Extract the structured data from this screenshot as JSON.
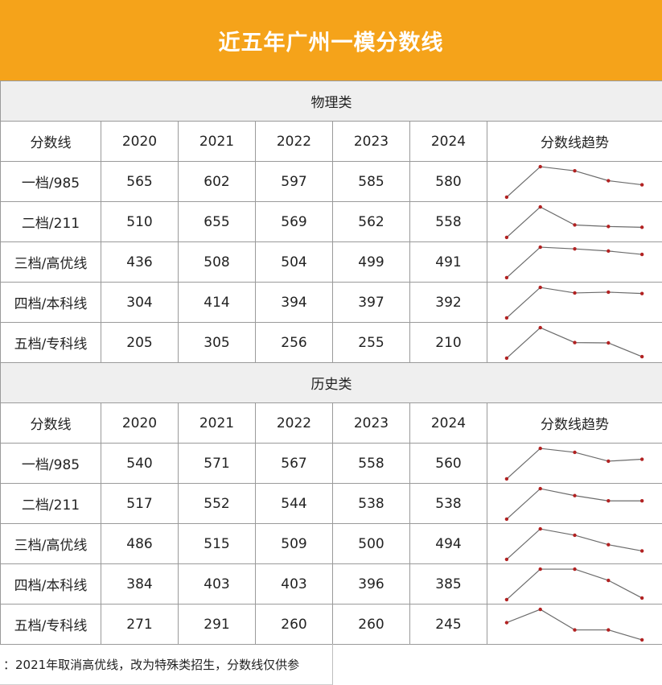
{
  "header": {
    "title": "近五年广州一模分数线"
  },
  "columns": {
    "label": "分数线",
    "years": [
      "2020",
      "2021",
      "2022",
      "2023",
      "2024"
    ],
    "trend": "分数线趋势"
  },
  "colors": {
    "banner": "#f5a31a",
    "trend_line": "#6b6b6b",
    "trend_point": "#b22222"
  },
  "sections": [
    {
      "title": "物理类",
      "rows": [
        {
          "label": "一档/985",
          "values": [
            565,
            602,
            597,
            585,
            580
          ]
        },
        {
          "label": "二档/211",
          "values": [
            510,
            655,
            569,
            562,
            558
          ]
        },
        {
          "label": "三档/高优线",
          "values": [
            436,
            508,
            504,
            499,
            491
          ]
        },
        {
          "label": "四档/本科线",
          "values": [
            304,
            414,
            394,
            397,
            392
          ]
        },
        {
          "label": "五档/专科线",
          "values": [
            205,
            305,
            256,
            255,
            210
          ]
        }
      ]
    },
    {
      "title": "历史类",
      "rows": [
        {
          "label": "一档/985",
          "values": [
            540,
            571,
            567,
            558,
            560
          ]
        },
        {
          "label": "二档/211",
          "values": [
            517,
            552,
            544,
            538,
            538
          ]
        },
        {
          "label": "三档/高优线",
          "values": [
            486,
            515,
            509,
            500,
            494
          ]
        },
        {
          "label": "四档/本科线",
          "values": [
            384,
            403,
            403,
            396,
            385
          ]
        },
        {
          "label": "五档/专科线",
          "values": [
            271,
            291,
            260,
            260,
            245
          ]
        }
      ]
    }
  ],
  "footnote": "：2021年取消高优线，改为特殊类招生，分数线仅供参"
}
